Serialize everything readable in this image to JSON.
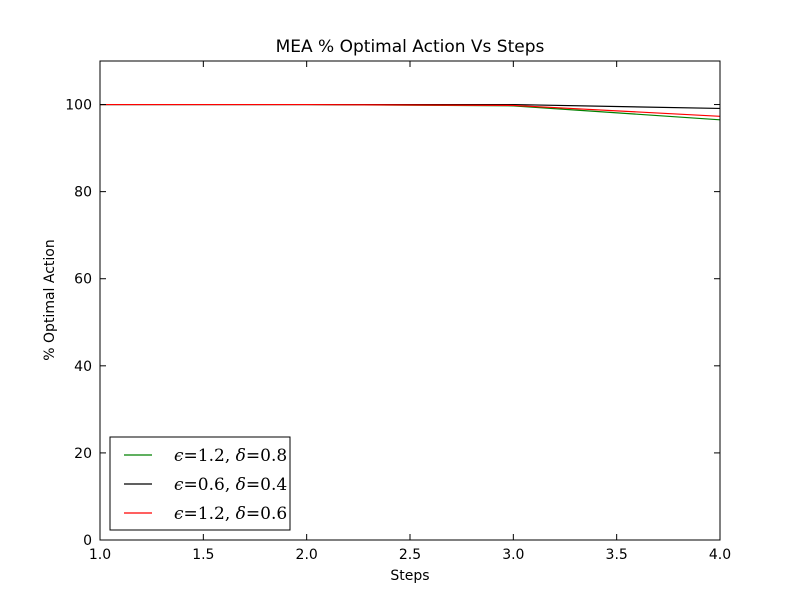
{
  "chart_data": {
    "type": "line",
    "title": "MEA % Optimal Action Vs Steps",
    "xlabel": "Steps",
    "ylabel": "% Optimal Action",
    "xlim": [
      1.0,
      4.0
    ],
    "ylim": [
      0,
      110
    ],
    "xticks": [
      "1.0",
      "1.5",
      "2.0",
      "2.5",
      "3.0",
      "3.5",
      "4.0"
    ],
    "yticks": [
      "0",
      "20",
      "40",
      "60",
      "80",
      "100"
    ],
    "x": [
      1,
      2,
      3,
      4
    ],
    "series": [
      {
        "symbol": "ϵ",
        "symbol_value": "1.2",
        "symbol2": "δ",
        "symbol2_value": "0.8",
        "color": "#008000",
        "values": [
          100,
          100,
          99.7,
          96.5
        ]
      },
      {
        "symbol": "ϵ",
        "symbol_value": "0.6",
        "symbol2": "δ",
        "symbol2_value": "0.4",
        "color": "#000000",
        "values": [
          100,
          100,
          100,
          99.1
        ]
      },
      {
        "symbol": "ϵ",
        "symbol_value": "1.2",
        "symbol2": "δ",
        "symbol2_value": "0.6",
        "color": "#ff0000",
        "values": [
          100,
          100,
          99.8,
          97.3
        ]
      }
    ],
    "grid": false,
    "legend_position": "lower-left"
  }
}
